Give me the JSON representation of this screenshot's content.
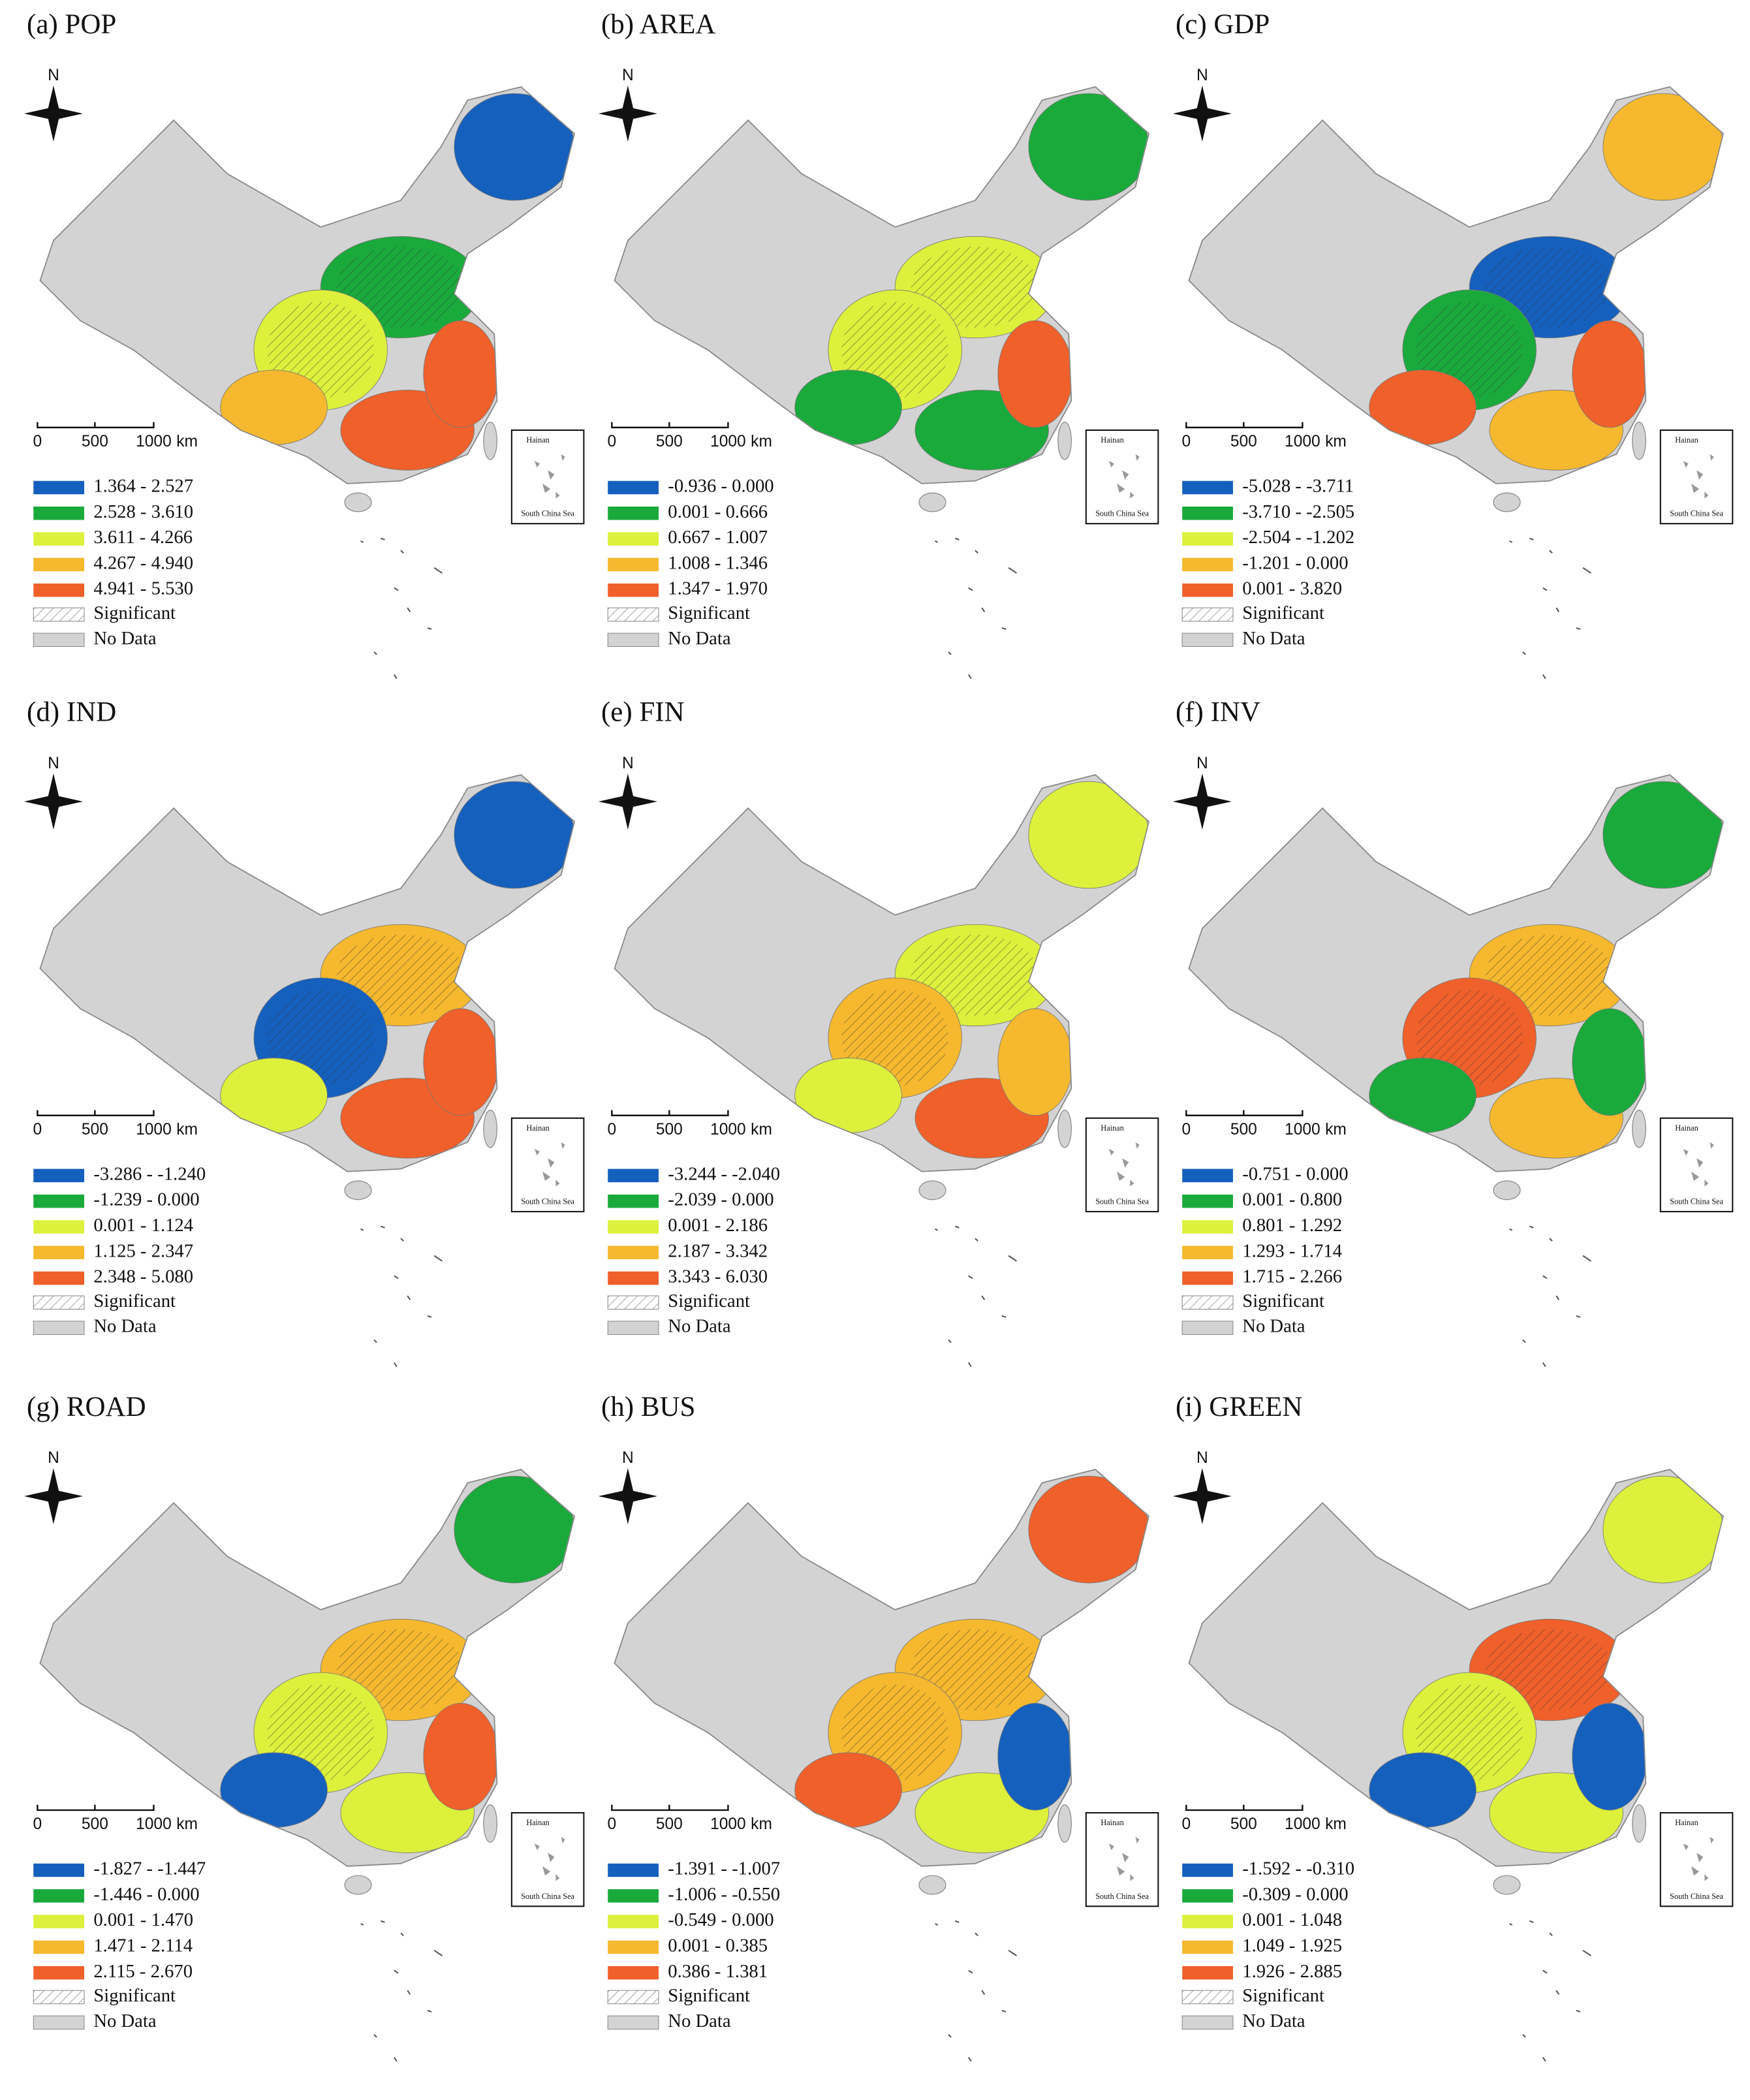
{
  "legend_colors": [
    "#1560bd",
    "#1aaa3c",
    "#dcf03c",
    "#f5b82e",
    "#f0602a"
  ],
  "no_data_color": "#d3d3d3",
  "significant": "Significant",
  "no_data": "No Data",
  "scale_labels": [
    "0",
    "500",
    "1000",
    "km"
  ],
  "north": "N",
  "inset_label": "Hainan",
  "inset_caption": "South China Sea",
  "panels": [
    {
      "title": "(a) POP",
      "legend": [
        "1.364 - 2.527",
        "2.528 - 3.610",
        "3.611 - 4.266",
        "4.267 - 4.940",
        "4.941 - 5.530"
      ]
    },
    {
      "title": "(b) AREA",
      "legend": [
        "-0.936 - 0.000",
        "0.001 - 0.666",
        "0.667 - 1.007",
        "1.008 - 1.346",
        "1.347 - 1.970"
      ]
    },
    {
      "title": "(c) GDP",
      "legend": [
        "-5.028 - -3.711",
        "-3.710 - -2.505",
        "-2.504 - -1.202",
        "-1.201 - 0.000",
        "0.001 - 3.820"
      ]
    },
    {
      "title": "(d) IND",
      "legend": [
        "-3.286 - -1.240",
        "-1.239 - 0.000",
        "0.001 - 1.124",
        "1.125 - 2.347",
        "2.348 - 5.080"
      ]
    },
    {
      "title": "(e) FIN",
      "legend": [
        "-3.244 - -2.040",
        "-2.039 - 0.000",
        "0.001 - 2.186",
        "2.187 - 3.342",
        "3.343 - 6.030"
      ]
    },
    {
      "title": "(f) INV",
      "legend": [
        "-0.751 - 0.000",
        "0.001 - 0.800",
        "0.801 - 1.292",
        "1.293 - 1.714",
        "1.715 - 2.266"
      ]
    },
    {
      "title": "(g) ROAD",
      "legend": [
        "-1.827 - -1.447",
        "-1.446 - 0.000",
        "0.001 - 1.470",
        "1.471 - 2.114",
        "2.115 - 2.670"
      ]
    },
    {
      "title": "(h) BUS",
      "legend": [
        "-1.391 - -1.007",
        "-1.006 - -0.550",
        "-0.549 - 0.000",
        "0.001 - 0.385",
        "0.386 - 1.381"
      ]
    },
    {
      "title": "(i) GREEN",
      "legend": [
        "-1.592 - -0.310",
        "-0.309 - 0.000",
        "0.001 - 1.048",
        "1.049 - 1.925",
        "1.926 - 2.885"
      ]
    }
  ]
}
